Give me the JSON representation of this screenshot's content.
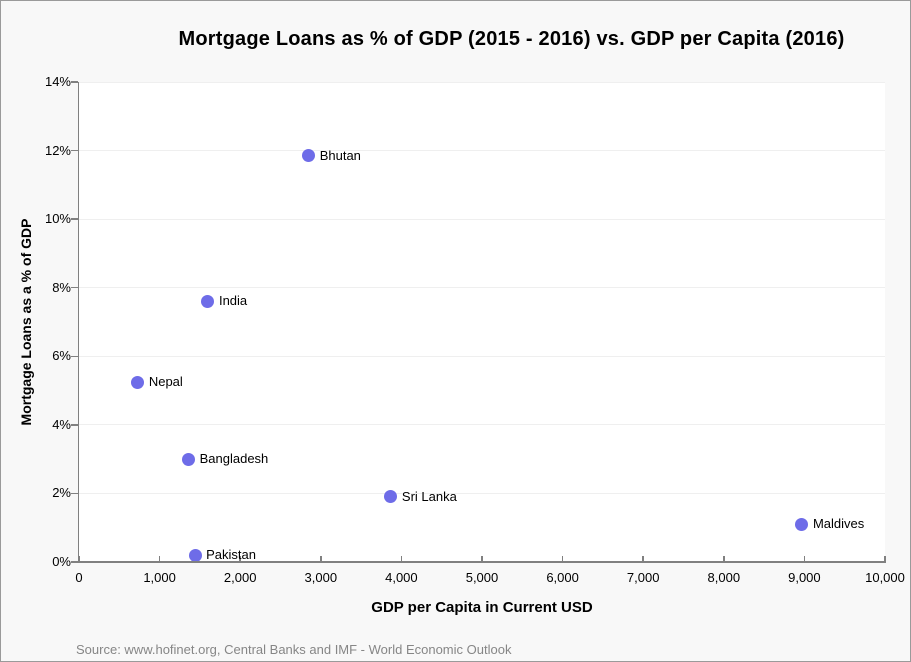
{
  "window": {
    "background_color": "#f8f8f8",
    "border_color": "#9a9a9a"
  },
  "title": "Mortgage Loans as % of GDP (2015 - 2016) vs. GDP per Capita (2016)",
  "source_note": "Source: www.hofinet.org,  Central Banks and IMF - World Economic Outlook",
  "chart_data": {
    "type": "scatter",
    "title": "Mortgage Loans as % of GDP (2015 - 2016) vs. GDP per Capita (2016)",
    "xlabel": "GDP per Capita in Current USD",
    "ylabel": "Mortgage Loans as a % of GDP",
    "xlim": [
      0,
      10000
    ],
    "ylim": [
      0,
      14
    ],
    "grid": "horizontal-only",
    "legend": "none",
    "plot_background": "#ffffff",
    "point_color": "#6e6ce8",
    "gridline_color": "#efefef",
    "axis_color": "#808080",
    "x_ticks": [
      {
        "value": 0,
        "label": "0"
      },
      {
        "value": 1000,
        "label": "1,000"
      },
      {
        "value": 2000,
        "label": "2,000"
      },
      {
        "value": 3000,
        "label": "3,000"
      },
      {
        "value": 4000,
        "label": "4,000"
      },
      {
        "value": 5000,
        "label": "5,000"
      },
      {
        "value": 6000,
        "label": "6,000"
      },
      {
        "value": 7000,
        "label": "7,000"
      },
      {
        "value": 8000,
        "label": "8,000"
      },
      {
        "value": 9000,
        "label": "9,000"
      },
      {
        "value": 10000,
        "label": "10,000"
      }
    ],
    "y_ticks": [
      {
        "value": 0,
        "label": "0%"
      },
      {
        "value": 2,
        "label": "2%"
      },
      {
        "value": 4,
        "label": "4%"
      },
      {
        "value": 6,
        "label": "6%"
      },
      {
        "value": 8,
        "label": "8%"
      },
      {
        "value": 10,
        "label": "10%"
      },
      {
        "value": 12,
        "label": "12%"
      },
      {
        "value": 14,
        "label": "14%"
      }
    ],
    "points": [
      {
        "name": "Bhutan",
        "gdp_per_capita": 2850,
        "mortgage_pct": 11.85
      },
      {
        "name": "India",
        "gdp_per_capita": 1600,
        "mortgage_pct": 7.6
      },
      {
        "name": "Nepal",
        "gdp_per_capita": 730,
        "mortgage_pct": 5.25
      },
      {
        "name": "Bangladesh",
        "gdp_per_capita": 1360,
        "mortgage_pct": 3.0
      },
      {
        "name": "Sri Lanka",
        "gdp_per_capita": 3870,
        "mortgage_pct": 1.9
      },
      {
        "name": "Maldives",
        "gdp_per_capita": 8970,
        "mortgage_pct": 1.1
      },
      {
        "name": "Pakistan",
        "gdp_per_capita": 1440,
        "mortgage_pct": 0.2
      }
    ]
  }
}
